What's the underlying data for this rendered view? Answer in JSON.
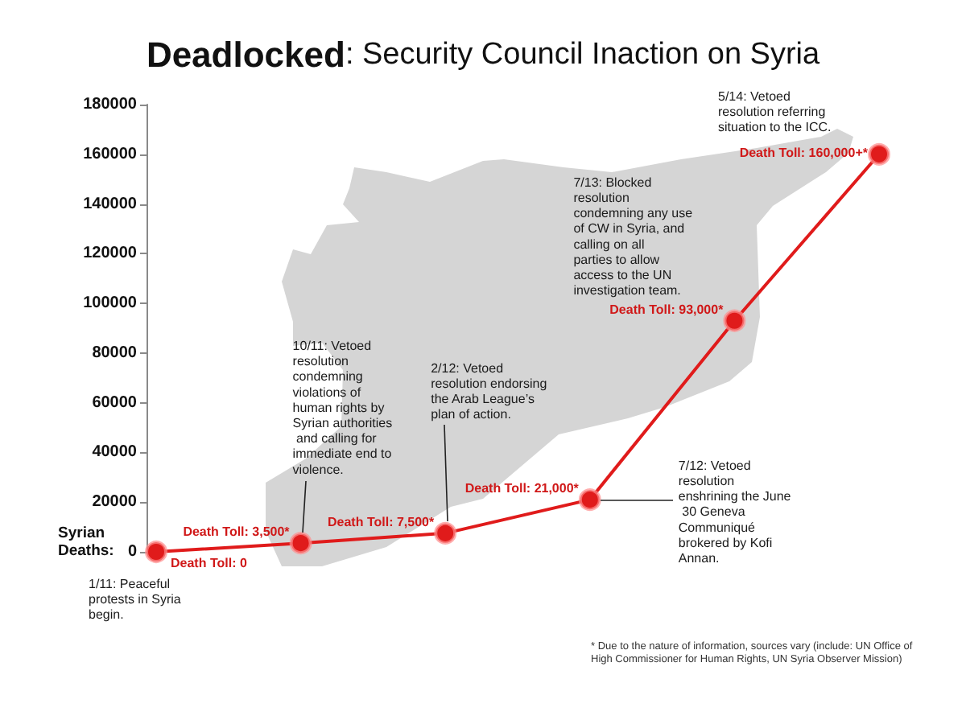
{
  "chart_data": {
    "type": "line",
    "title": "Deadlocked: Security Council Inaction on Syria",
    "ylabel": "Syrian Deaths:",
    "categories": [
      null,
      null,
      null,
      null,
      null,
      null
    ],
    "series": [
      {
        "color": "#e01b1b",
        "values": [
          0,
          3500,
          7500,
          21000,
          93000,
          160000
        ],
        "value_labels": [
          "Death Toll: 0",
          "Death Toll: 3,500*",
          "Death Toll: 7,500*",
          "Death Toll: 21,000*",
          "Death Toll: 93,000*",
          "Death Toll: 160,000+*"
        ]
      }
    ],
    "ylim": [
      0,
      180000
    ],
    "yticks": [
      0,
      20000,
      40000,
      60000,
      80000,
      100000,
      120000,
      140000,
      160000,
      180000
    ],
    "marker": "circle",
    "line_style": "solid",
    "annotations": [
      "1/11: Peaceful protests in Syria begin.",
      "10/11: Vetoed resolution condemning violations of human rights by Syrian authorities and calling for immediate end to violence.",
      "2/12: Vetoed resolution endorsing the Arab League’s plan of action.",
      "7/12: Vetoed resolution enshrining the June 30 Geneva Communiqué brokered by Kofi Annan.",
      "7/13: Blocked resolution condemning any use of CW in Syria, and calling on all parties to allow access to the UN investigation team.",
      "5/14: Vetoed resolution referring situation to the ICC.",
      "* Due to the nature of information, sources vary (include: UN Office of High Commissioner for Human Rights, UN Syria Observer Mission)"
    ]
  }
}
